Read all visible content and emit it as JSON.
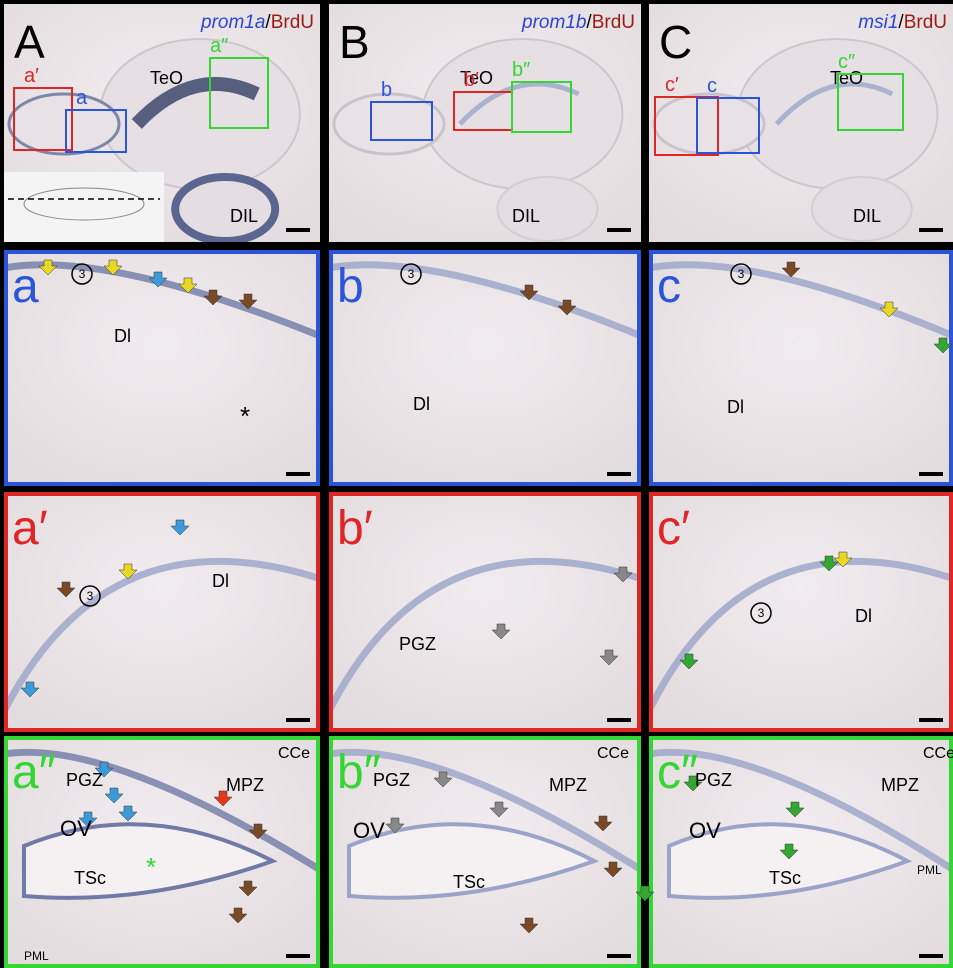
{
  "panels": [
    {
      "letter": "A",
      "title": {
        "gene": "prom1a",
        "separator": "/",
        "marker": "BrdU"
      },
      "labels": [
        "TeO",
        "DIL"
      ],
      "boxes": [
        "a′",
        "a",
        "a″"
      ]
    },
    {
      "letter": "B",
      "title": {
        "gene": "prom1b",
        "separator": "/",
        "marker": "BrdU"
      },
      "labels": [
        "TeO",
        "DIL"
      ],
      "boxes": [
        "b",
        "b′",
        "b″"
      ]
    },
    {
      "letter": "C",
      "title": {
        "gene": "msi1",
        "separator": "/",
        "marker": "BrdU"
      },
      "labels": [
        "TeO",
        "DIL"
      ],
      "boxes": [
        "c′",
        "c",
        "c″"
      ]
    },
    {
      "letter": "a",
      "labels": [
        "3",
        "Dl",
        "*"
      ]
    },
    {
      "letter": "b",
      "labels": [
        "3",
        "Dl"
      ]
    },
    {
      "letter": "c",
      "labels": [
        "3",
        "Dl"
      ]
    },
    {
      "letter": "a′",
      "labels": [
        "3",
        "Dl"
      ]
    },
    {
      "letter": "b′",
      "labels": [
        "PGZ"
      ]
    },
    {
      "letter": "c′",
      "labels": [
        "3",
        "Dl"
      ]
    },
    {
      "letter": "a″",
      "labels": [
        "PGZ",
        "CCe",
        "MPZ",
        "OV",
        "TSc",
        "*",
        "PML"
      ]
    },
    {
      "letter": "b″",
      "labels": [
        "PGZ",
        "CCe",
        "MPZ",
        "OV",
        "TSc"
      ]
    },
    {
      "letter": "c″",
      "labels": [
        "PGZ",
        "CCe",
        "MPZ",
        "OV",
        "TSc",
        "PML"
      ]
    }
  ]
}
